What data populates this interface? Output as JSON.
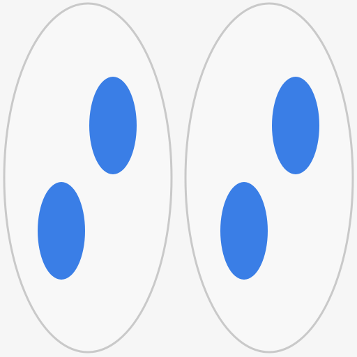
{
  "colors": {
    "background": "#f6f6f6",
    "outline": "#c9c9c9",
    "fill_white": "#f8f8f8",
    "dot_blue": "#3a7ee6"
  },
  "shapes": {
    "left": {
      "name": "left-oval",
      "dots": [
        "upper-dot",
        "lower-dot"
      ]
    },
    "right": {
      "name": "right-oval",
      "dots": [
        "upper-dot",
        "lower-dot"
      ]
    }
  }
}
